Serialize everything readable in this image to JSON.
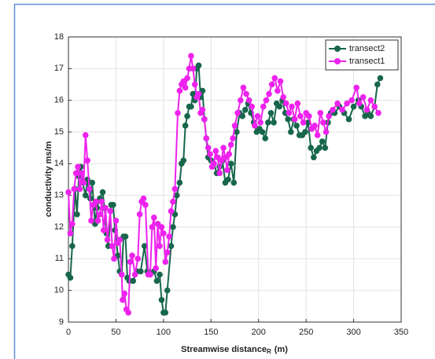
{
  "chart_data": {
    "type": "line",
    "y_label": "conductivity ms/m",
    "x_label": "Streamwise distance",
    "x_label_subscript": "R",
    "x_label_unit": "(m)",
    "xlim": [
      0,
      350
    ],
    "xticks": [
      0,
      50,
      100,
      150,
      200,
      250,
      300,
      350
    ],
    "ylim": [
      9,
      18
    ],
    "yticks": [
      9,
      10,
      11,
      12,
      13,
      14,
      15,
      16,
      17,
      18
    ],
    "grid": true,
    "legend": "northeast",
    "series": [
      {
        "name": "transect2",
        "color": "#17664d",
        "x": [
          0,
          2,
          4,
          7,
          9,
          11,
          13,
          15,
          18,
          20,
          23,
          25,
          28,
          30,
          33,
          36,
          38,
          40,
          42,
          45,
          47,
          49,
          52,
          54,
          56,
          58,
          60,
          62,
          64,
          68,
          72,
          76,
          80,
          83,
          86,
          90,
          93,
          96,
          98,
          100,
          102,
          104,
          108,
          110,
          112,
          114,
          117,
          119,
          121,
          123,
          125,
          127,
          129,
          131,
          133,
          135,
          137,
          139,
          141,
          143,
          145,
          147,
          150,
          153,
          156,
          159,
          162,
          165,
          168,
          171,
          174,
          177,
          180,
          183,
          186,
          189,
          192,
          195,
          198,
          201,
          204,
          207,
          210,
          213,
          216,
          219,
          222,
          225,
          228,
          231,
          234,
          237,
          240,
          243,
          246,
          249,
          252,
          255,
          258,
          261,
          264,
          267,
          270,
          273,
          276,
          280,
          285,
          290,
          295,
          300,
          305,
          308,
          312,
          315,
          318,
          322,
          325,
          328
        ],
        "values": [
          10.5,
          10.4,
          11.4,
          13.2,
          12.4,
          13.6,
          13.9,
          13.4,
          13.0,
          13.5,
          12.9,
          13.4,
          12.1,
          12.6,
          12.9,
          13.1,
          12.6,
          11.8,
          11.4,
          12.7,
          12.7,
          11.9,
          11.1,
          10.6,
          10.5,
          11.7,
          11.7,
          10.4,
          10.3,
          10.3,
          10.6,
          10.6,
          11.4,
          10.6,
          10.5,
          10.6,
          10.3,
          10.5,
          9.7,
          9.3,
          9.3,
          10.0,
          11.4,
          12.0,
          12.4,
          13.0,
          13.4,
          14.0,
          14.1,
          15.2,
          15.5,
          15.8,
          15.8,
          16.2,
          16.0,
          17.0,
          17.1,
          16.1,
          16.3,
          15.4,
          14.8,
          14.2,
          14.1,
          14.0,
          13.7,
          13.9,
          14.1,
          13.4,
          13.5,
          14.0,
          13.4,
          15.0,
          15.6,
          15.5,
          15.7,
          15.9,
          15.6,
          15.3,
          15.0,
          15.1,
          15.0,
          14.8,
          15.3,
          15.6,
          15.3,
          15.9,
          15.8,
          16.0,
          15.6,
          15.4,
          15.0,
          15.4,
          15.2,
          14.9,
          14.9,
          15.0,
          15.3,
          14.5,
          14.2,
          14.4,
          14.5,
          14.7,
          14.5,
          15.3,
          15.6,
          15.6,
          15.8,
          15.6,
          15.4,
          15.8,
          16.0,
          15.8,
          15.5,
          15.6,
          15.5,
          15.8,
          16.5,
          16.7
        ]
      },
      {
        "name": "transect1",
        "color": "#ee22ee",
        "x": [
          0,
          2,
          4,
          6,
          8,
          10,
          12,
          14,
          16,
          18,
          20,
          22,
          24,
          26,
          29,
          31,
          33,
          35,
          37,
          39,
          41,
          44,
          46,
          48,
          50,
          52,
          54,
          56,
          57,
          59,
          61,
          63,
          65,
          67,
          70,
          73,
          75,
          77,
          79,
          81,
          84,
          86,
          88,
          90,
          92,
          94,
          96,
          98,
          100,
          102,
          104,
          106,
          108,
          110,
          112,
          115,
          117,
          119,
          121,
          123,
          125,
          127,
          129,
          131,
          133,
          135,
          137,
          139,
          141,
          143,
          145,
          147,
          149,
          151,
          153,
          155,
          157,
          159,
          161,
          163,
          165,
          167,
          169,
          171,
          173,
          175,
          178,
          181,
          184,
          187,
          190,
          193,
          196,
          199,
          202,
          205,
          208,
          211,
          214,
          217,
          220,
          223,
          226,
          229,
          232,
          235,
          238,
          241,
          244,
          247,
          250,
          253,
          256,
          259,
          262,
          265,
          268,
          271,
          274,
          278,
          283,
          288,
          293,
          298,
          303,
          306,
          310,
          314,
          318,
          322,
          326
        ],
        "values": [
          13.1,
          11.8,
          12.1,
          13.2,
          13.7,
          13.9,
          13.2,
          13.7,
          13.4,
          14.9,
          14.1,
          13.2,
          12.2,
          12.7,
          12.8,
          12.2,
          12.4,
          12.8,
          11.9,
          12.6,
          11.6,
          12.5,
          11.4,
          11.0,
          12.2,
          11.5,
          11.6,
          10.5,
          9.7,
          9.9,
          9.4,
          9.3,
          10.9,
          11.1,
          10.5,
          11.0,
          12.4,
          12.8,
          12.9,
          12.7,
          10.5,
          10.5,
          12.0,
          12.3,
          10.7,
          12.1,
          11.4,
          12.0,
          11.8,
          10.9,
          11.2,
          11.7,
          12.5,
          12.8,
          13.2,
          15.6,
          16.3,
          16.5,
          16.6,
          16.4,
          16.7,
          17.0,
          17.4,
          17.0,
          16.5,
          16.1,
          16.2,
          15.6,
          15.7,
          15.4,
          14.8,
          14.5,
          14.3,
          13.9,
          14.0,
          14.4,
          14.2,
          13.7,
          14.1,
          14.5,
          14.2,
          13.8,
          14.3,
          14.6,
          14.8,
          15.2,
          15.6,
          16.0,
          16.4,
          16.2,
          16.0,
          15.8,
          15.2,
          15.5,
          15.3,
          15.8,
          16.0,
          16.2,
          16.5,
          16.7,
          16.3,
          16.6,
          16.1,
          15.9,
          15.6,
          15.8,
          15.4,
          15.9,
          15.5,
          15.3,
          15.6,
          15.5,
          15.1,
          15.2,
          14.9,
          15.6,
          15.3,
          15.0,
          15.5,
          15.7,
          15.9,
          15.7,
          15.9,
          16.0,
          16.4,
          15.9,
          16.1,
          15.7,
          16.0,
          15.8,
          15.6
        ]
      }
    ]
  }
}
